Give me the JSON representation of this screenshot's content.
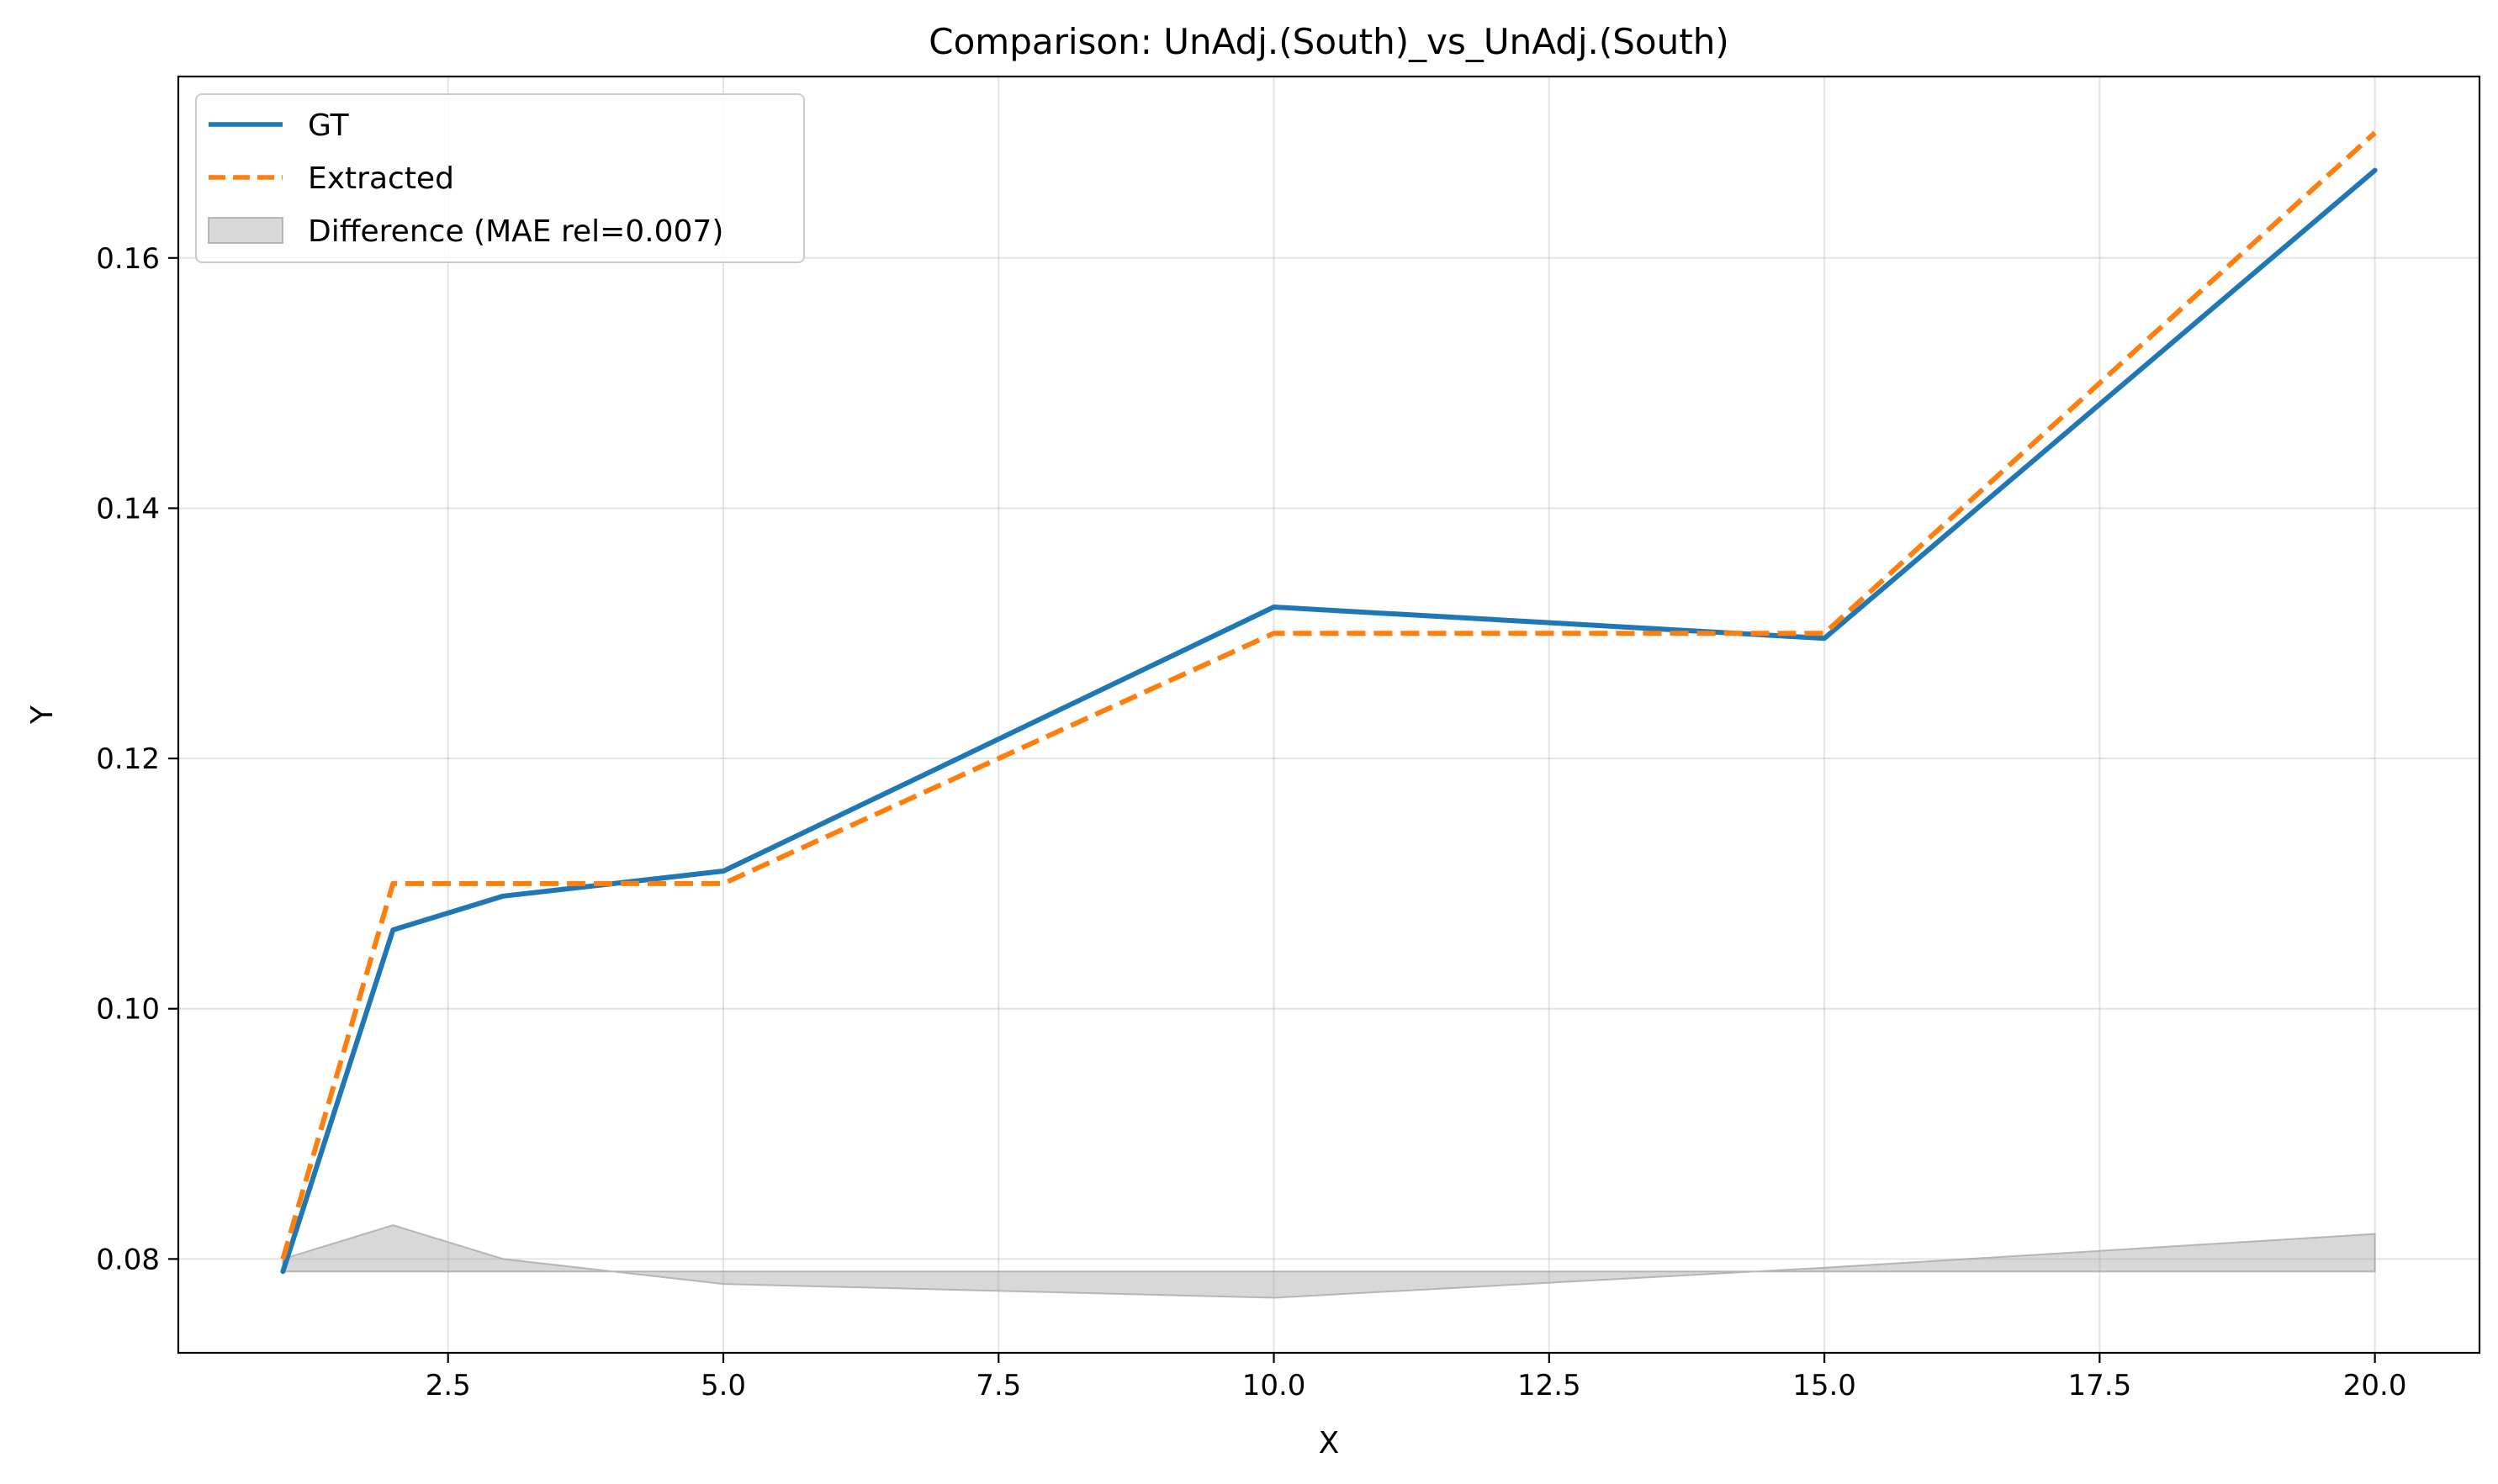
{
  "chart_data": {
    "type": "line",
    "title": "Comparison: UnAdj.(South)_vs_UnAdj.(South)",
    "xlabel": "X",
    "ylabel": "Y",
    "xlim": [
      0.05,
      20.95
    ],
    "ylim": [
      0.0725,
      0.1745
    ],
    "xticks": [
      2.5,
      5.0,
      7.5,
      10.0,
      12.5,
      15.0,
      17.5,
      20.0
    ],
    "xtick_labels": [
      "2.5",
      "5.0",
      "7.5",
      "10.0",
      "12.5",
      "15.0",
      "17.5",
      "20.0"
    ],
    "yticks": [
      0.08,
      0.1,
      0.12,
      0.14,
      0.16
    ],
    "ytick_labels": [
      "0.08",
      "0.10",
      "0.12",
      "0.14",
      "0.16"
    ],
    "grid": true,
    "legend_position": "top-left",
    "series": [
      {
        "name": "GT",
        "style": "solid",
        "color": "#1f77b4",
        "x": [
          1,
          2,
          3,
          5,
          10,
          15,
          20
        ],
        "y": [
          0.079,
          0.1063,
          0.109,
          0.111,
          0.1321,
          0.1296,
          0.167
        ]
      },
      {
        "name": "Extracted",
        "style": "dashed",
        "color": "#ff7f0e",
        "x": [
          1,
          2,
          3,
          5,
          10,
          15,
          20
        ],
        "y": [
          0.08,
          0.11,
          0.11,
          0.11,
          0.13,
          0.13,
          0.17
        ]
      }
    ],
    "difference": {
      "name": "Difference (MAE rel=0.007)",
      "color": "#a9a9a9",
      "baseline": 0.079,
      "x": [
        1,
        2,
        3,
        5,
        10,
        15,
        20
      ],
      "y": [
        0.08,
        0.0827,
        0.08,
        0.078,
        0.0769,
        0.0793,
        0.082
      ]
    }
  }
}
